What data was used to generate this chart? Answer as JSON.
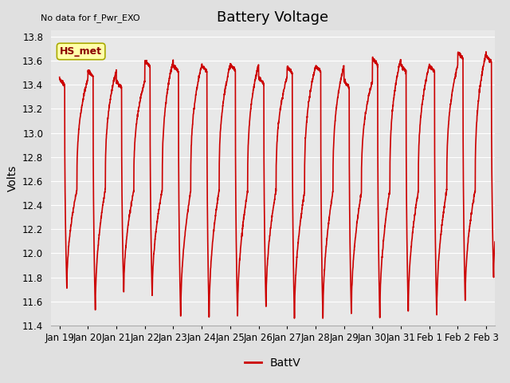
{
  "title": "Battery Voltage",
  "ylabel": "Volts",
  "top_left_text": "No data for f_Pwr_EXO",
  "legend_label": "BattV",
  "legend_line_color": "#cc0000",
  "line_color": "#cc0000",
  "line_width": 1.2,
  "ylim": [
    11.4,
    13.85
  ],
  "yticks": [
    11.4,
    11.6,
    11.8,
    12.0,
    12.2,
    12.4,
    12.6,
    12.8,
    13.0,
    13.2,
    13.4,
    13.6,
    13.8
  ],
  "xtick_labels": [
    "Jan 19",
    "Jan 20",
    "Jan 21",
    "Jan 22",
    "Jan 23",
    "Jan 24",
    "Jan 25",
    "Jan 26",
    "Jan 27",
    "Jan 28",
    "Jan 29",
    "Jan 30",
    "Jan 31",
    "Feb 1",
    "Feb 2",
    "Feb 3"
  ],
  "background_color": "#e0e0e0",
  "plot_bg_color": "#e8e8e8",
  "grid_color": "#ffffff",
  "hs_met_label": "HS_met",
  "hs_met_box_color": "#ffffaa",
  "hs_met_text_color": "#8b0000",
  "title_fontsize": 13,
  "label_fontsize": 10,
  "tick_fontsize": 8.5,
  "days": 16,
  "cycle_peaks": [
    13.45,
    13.52,
    13.43,
    13.6,
    13.56,
    13.56,
    13.57,
    13.46,
    13.55,
    13.56,
    13.43,
    13.62,
    13.56,
    13.56,
    13.67,
    13.64
  ],
  "cycle_troughs": [
    11.72,
    11.53,
    11.68,
    11.65,
    11.48,
    11.47,
    11.48,
    11.56,
    11.46,
    11.46,
    11.5,
    11.47,
    11.52,
    11.49,
    11.61,
    11.81
  ],
  "mid_blips": [
    12.52,
    12.53,
    12.52,
    12.52,
    12.51,
    12.52,
    12.51,
    12.52,
    12.5,
    12.51,
    12.5,
    12.52,
    12.51,
    12.52,
    12.52,
    12.64
  ]
}
